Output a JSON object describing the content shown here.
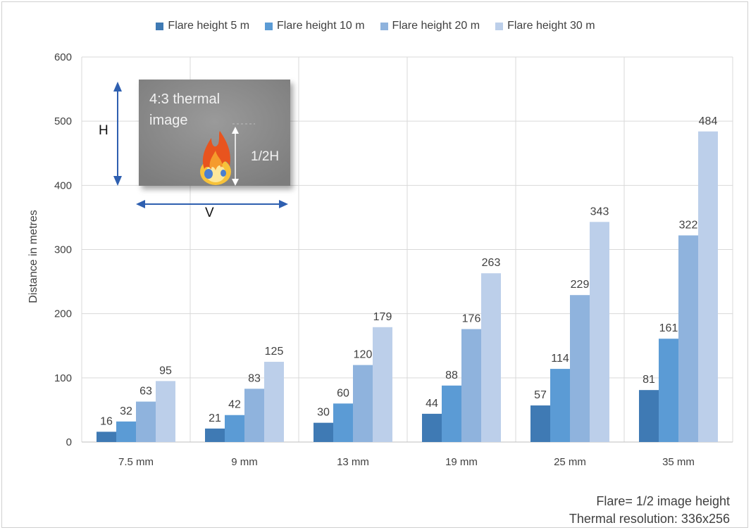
{
  "colors": {
    "series": [
      "#3f7ab4",
      "#5b9bd5",
      "#8fb3dd",
      "#bccfea"
    ],
    "grid": "#d9d9d9",
    "inset_bg": "#8c8c8c",
    "arrow": "#2e5fb0"
  },
  "inset": {
    "title": "4:3 thermal image",
    "half_label": "1/2H",
    "h_label": "H",
    "v_label": "V",
    "icon": "flame-icon"
  },
  "footnote": {
    "line1": "Flare= 1/2 image height",
    "line2": "Thermal resolution: 336x256"
  },
  "chart_data": {
    "type": "bar",
    "title": "",
    "xlabel": "",
    "ylabel": "Distance in metres",
    "ylim": [
      0,
      600
    ],
    "yticks": [
      "0",
      "100",
      "200",
      "300",
      "400",
      "500",
      "600"
    ],
    "grid": true,
    "legend_position": "top",
    "categories": [
      "7.5 mm",
      "9 mm",
      "13 mm",
      "19 mm",
      "25 mm",
      "35 mm"
    ],
    "series": [
      {
        "name": "Flare height 5 m",
        "values": [
          16,
          21,
          30,
          44,
          57,
          81
        ]
      },
      {
        "name": "Flare height 10 m",
        "values": [
          32,
          42,
          60,
          88,
          114,
          161
        ]
      },
      {
        "name": "Flare height 20 m",
        "values": [
          63,
          83,
          120,
          176,
          229,
          322
        ]
      },
      {
        "name": "Flare height 30 m",
        "values": [
          95,
          125,
          179,
          263,
          343,
          484
        ]
      }
    ]
  }
}
